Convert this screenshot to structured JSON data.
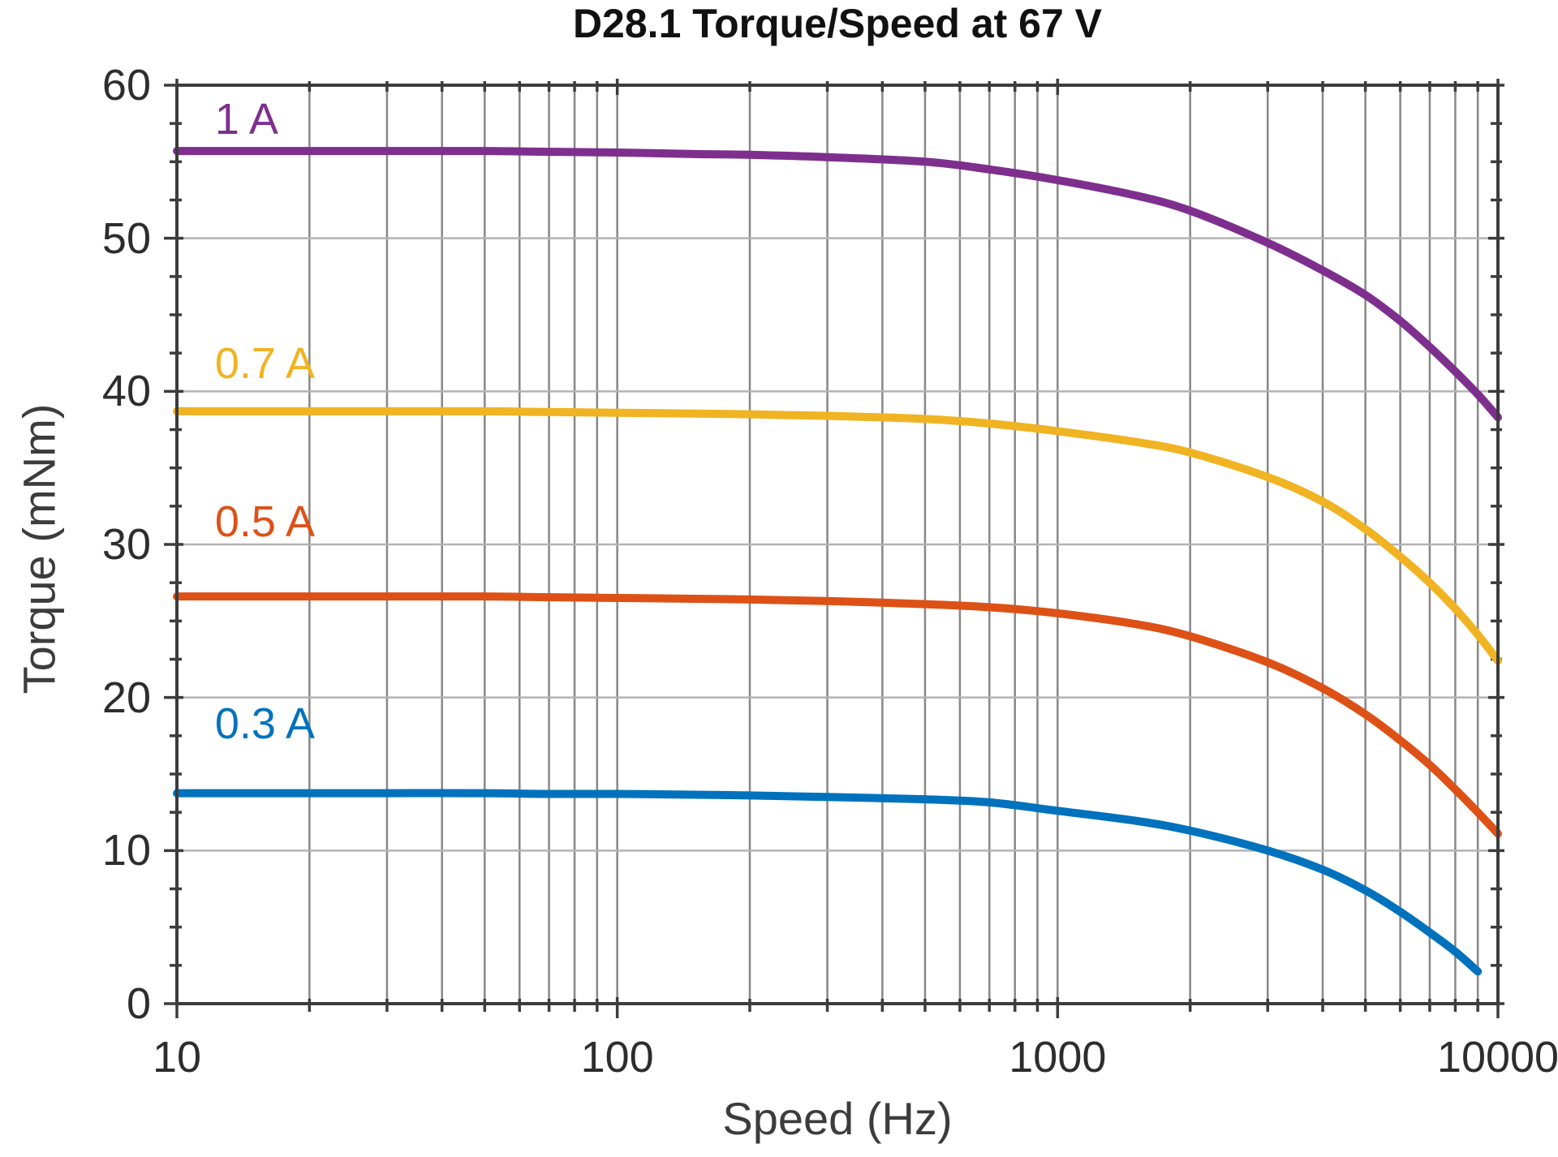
{
  "page": {
    "background": "#ffffff"
  },
  "chart_data": {
    "type": "line",
    "title": "D28.1 Torque/Speed at 67 V",
    "xlabel": "Speed (Hz)",
    "ylabel": "Torque (mNm)",
    "x_scale": "log",
    "xlim": [
      10,
      10000
    ],
    "ylim": [
      0,
      60
    ],
    "x_major_ticks": [
      10,
      100,
      1000,
      10000
    ],
    "x_tick_labels": [
      "10",
      "100",
      "1000",
      "10000"
    ],
    "y_major_ticks": [
      0,
      10,
      20,
      30,
      40,
      50,
      60
    ],
    "y_tick_labels": [
      "0",
      "10",
      "20",
      "30",
      "40",
      "50",
      "60"
    ],
    "y_minor_tick_step": 2.5,
    "grid": {
      "vertical": "all log minor and major ticks",
      "horizontal": "major ticks only",
      "vertical_color": "#878787",
      "horizontal_color": "#b3b3b3"
    },
    "spine_color": "#3c3c3c",
    "legend_position": "inline labels at left side of curves",
    "series": [
      {
        "name": "1 A",
        "color": "#7E2F8E",
        "label_anchor": {
          "x": 12.2,
          "y": 57.8
        },
        "points": [
          [
            10,
            55.7
          ],
          [
            20,
            55.7
          ],
          [
            30,
            55.7
          ],
          [
            50,
            55.7
          ],
          [
            70,
            55.65
          ],
          [
            100,
            55.6
          ],
          [
            150,
            55.5
          ],
          [
            200,
            55.45
          ],
          [
            300,
            55.3
          ],
          [
            500,
            55.0
          ],
          [
            700,
            54.5
          ],
          [
            1000,
            53.8
          ],
          [
            1500,
            52.8
          ],
          [
            2000,
            51.8
          ],
          [
            3000,
            49.7
          ],
          [
            4000,
            47.9
          ],
          [
            5000,
            46.3
          ],
          [
            6000,
            44.6
          ],
          [
            7000,
            42.9
          ],
          [
            8000,
            41.3
          ],
          [
            9000,
            39.8
          ],
          [
            10000,
            38.3
          ]
        ]
      },
      {
        "name": "0.7 A",
        "color": "#F0B322",
        "label_anchor": {
          "x": 12.2,
          "y": 41.8
        },
        "points": [
          [
            10,
            38.7
          ],
          [
            20,
            38.7
          ],
          [
            30,
            38.7
          ],
          [
            50,
            38.7
          ],
          [
            70,
            38.65
          ],
          [
            100,
            38.6
          ],
          [
            150,
            38.55
          ],
          [
            200,
            38.5
          ],
          [
            300,
            38.4
          ],
          [
            500,
            38.2
          ],
          [
            700,
            37.9
          ],
          [
            1000,
            37.4
          ],
          [
            1500,
            36.7
          ],
          [
            2000,
            36.0
          ],
          [
            3000,
            34.4
          ],
          [
            4000,
            32.8
          ],
          [
            5000,
            31.0
          ],
          [
            6000,
            29.2
          ],
          [
            7000,
            27.5
          ],
          [
            8000,
            25.8
          ],
          [
            9000,
            24.1
          ],
          [
            10000,
            22.4
          ]
        ]
      },
      {
        "name": "0.5 A",
        "color": "#DD5117",
        "label_anchor": {
          "x": 12.2,
          "y": 31.5
        },
        "points": [
          [
            10,
            26.6
          ],
          [
            20,
            26.6
          ],
          [
            30,
            26.6
          ],
          [
            50,
            26.6
          ],
          [
            70,
            26.55
          ],
          [
            100,
            26.5
          ],
          [
            150,
            26.45
          ],
          [
            200,
            26.4
          ],
          [
            300,
            26.3
          ],
          [
            500,
            26.1
          ],
          [
            700,
            25.9
          ],
          [
            1000,
            25.5
          ],
          [
            1500,
            24.8
          ],
          [
            2000,
            24.0
          ],
          [
            3000,
            22.3
          ],
          [
            4000,
            20.6
          ],
          [
            5000,
            18.9
          ],
          [
            6000,
            17.2
          ],
          [
            7000,
            15.6
          ],
          [
            8000,
            14.0
          ],
          [
            9000,
            12.5
          ],
          [
            10000,
            11.1
          ]
        ]
      },
      {
        "name": "0.3 A",
        "color": "#0072BD",
        "label_anchor": {
          "x": 12.2,
          "y": 18.3
        },
        "points": [
          [
            10,
            13.75
          ],
          [
            20,
            13.75
          ],
          [
            30,
            13.75
          ],
          [
            50,
            13.75
          ],
          [
            70,
            13.7
          ],
          [
            100,
            13.7
          ],
          [
            150,
            13.65
          ],
          [
            200,
            13.6
          ],
          [
            300,
            13.5
          ],
          [
            500,
            13.35
          ],
          [
            700,
            13.15
          ],
          [
            1000,
            12.6
          ],
          [
            1500,
            11.95
          ],
          [
            2000,
            11.3
          ],
          [
            3000,
            10.0
          ],
          [
            4000,
            8.75
          ],
          [
            5000,
            7.4
          ],
          [
            6000,
            6.0
          ],
          [
            7000,
            4.65
          ],
          [
            8000,
            3.4
          ],
          [
            9000,
            2.1
          ]
        ]
      }
    ]
  }
}
